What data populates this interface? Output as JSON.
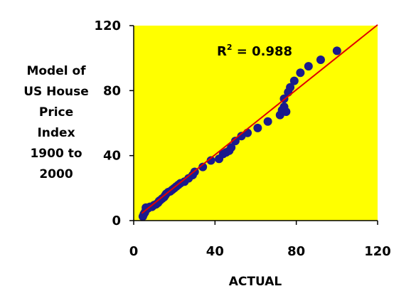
{
  "chart_data": {
    "type": "scatter",
    "title": "",
    "ylabel_lines": [
      "Model of",
      "US House",
      "Price",
      "Index",
      "1900 to",
      "2000"
    ],
    "xlabel": "ACTUAL",
    "xlim": [
      0,
      120
    ],
    "ylim": [
      0,
      120
    ],
    "x_ticks": [
      "0",
      "40",
      "80",
      "120"
    ],
    "y_ticks": [
      "0",
      "40",
      "80",
      "120"
    ],
    "grid": false,
    "legend": "none",
    "annotation": {
      "text_main": "R",
      "text_sup": "2",
      "text_rest": " = 0.988"
    },
    "colors": {
      "plot_background": "#ffff00",
      "points": "#1a1a8c",
      "trendline": "#e00000",
      "axes": "#000000"
    },
    "trendline": {
      "x": [
        4,
        120
      ],
      "y": [
        4.5,
        120.5
      ]
    },
    "points": [
      {
        "x": 4.5,
        "y": 2.5
      },
      {
        "x": 5,
        "y": 4
      },
      {
        "x": 5.5,
        "y": 5
      },
      {
        "x": 6,
        "y": 6.5
      },
      {
        "x": 6,
        "y": 8
      },
      {
        "x": 7,
        "y": 7.5
      },
      {
        "x": 8,
        "y": 8.5
      },
      {
        "x": 9,
        "y": 8.5
      },
      {
        "x": 10,
        "y": 9.5
      },
      {
        "x": 11,
        "y": 10
      },
      {
        "x": 12,
        "y": 11
      },
      {
        "x": 12.5,
        "y": 12
      },
      {
        "x": 13,
        "y": 12.5
      },
      {
        "x": 14,
        "y": 13.5
      },
      {
        "x": 15,
        "y": 14.5
      },
      {
        "x": 15.5,
        "y": 15.5
      },
      {
        "x": 16,
        "y": 16.5
      },
      {
        "x": 17,
        "y": 17.5
      },
      {
        "x": 18,
        "y": 18
      },
      {
        "x": 19,
        "y": 19
      },
      {
        "x": 20,
        "y": 20
      },
      {
        "x": 21,
        "y": 21
      },
      {
        "x": 22,
        "y": 22
      },
      {
        "x": 23,
        "y": 23
      },
      {
        "x": 25,
        "y": 24
      },
      {
        "x": 27,
        "y": 26
      },
      {
        "x": 29,
        "y": 28
      },
      {
        "x": 30,
        "y": 30
      },
      {
        "x": 34,
        "y": 33
      },
      {
        "x": 38,
        "y": 37
      },
      {
        "x": 42,
        "y": 38
      },
      {
        "x": 44,
        "y": 41
      },
      {
        "x": 45.5,
        "y": 42
      },
      {
        "x": 47,
        "y": 43
      },
      {
        "x": 48,
        "y": 45
      },
      {
        "x": 50,
        "y": 49
      },
      {
        "x": 53,
        "y": 52
      },
      {
        "x": 56,
        "y": 54
      },
      {
        "x": 61,
        "y": 57
      },
      {
        "x": 66,
        "y": 61
      },
      {
        "x": 72,
        "y": 65
      },
      {
        "x": 73,
        "y": 68
      },
      {
        "x": 74,
        "y": 70
      },
      {
        "x": 74,
        "y": 75
      },
      {
        "x": 75,
        "y": 67
      },
      {
        "x": 76,
        "y": 79
      },
      {
        "x": 77,
        "y": 82
      },
      {
        "x": 79,
        "y": 86
      },
      {
        "x": 82,
        "y": 91
      },
      {
        "x": 86,
        "y": 95
      },
      {
        "x": 92,
        "y": 99
      },
      {
        "x": 100,
        "y": 104.5
      }
    ]
  }
}
